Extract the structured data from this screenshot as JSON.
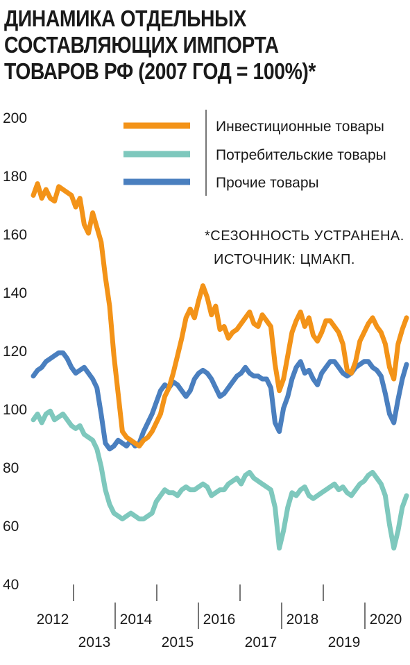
{
  "title_lines": [
    "ДИНАМИКА ОТДЕЛЬНЫХ",
    "СОСТАВЛЯЮЩИХ ИМПОРТА",
    "ТОВАРОВ РФ (2007 ГОД = 100%)*"
  ],
  "note_lines": [
    "*СЕЗОННОСТЬ УСТРАНЕНА.",
    "ИСТОЧНИК: ЦМАКП."
  ],
  "chart_data": {
    "type": "line",
    "title": "ДИНАМИКА ОТДЕЛЬНЫХ СОСТАВЛЯЮЩИХ ИМПОРТА ТОВАРОВ РФ (2007 ГОД = 100%)*",
    "xlabel": "",
    "ylabel": "",
    "ylim": [
      40,
      200
    ],
    "xlim": [
      2011.5,
      2020.3
    ],
    "y_ticks": [
      "200",
      "180",
      "160",
      "140",
      "120",
      "100",
      "80",
      "60",
      "40"
    ],
    "x_ticks_top": [
      "2012",
      "2014",
      "2016",
      "2018",
      "2020"
    ],
    "x_ticks_bottom": [
      "2013",
      "2015",
      "2017",
      "2019"
    ],
    "grid": false,
    "legend_position": "top-right",
    "series": [
      {
        "name": "Инвестиционные товары",
        "color": "#f39318",
        "x": [
          2011.5,
          2011.6,
          2011.7,
          2011.8,
          2011.9,
          2012.0,
          2012.1,
          2012.2,
          2012.3,
          2012.4,
          2012.5,
          2012.6,
          2012.7,
          2012.8,
          2012.9,
          2013.0,
          2013.1,
          2013.2,
          2013.3,
          2013.4,
          2013.5,
          2013.6,
          2013.7,
          2013.8,
          2013.9,
          2014.0,
          2014.1,
          2014.2,
          2014.3,
          2014.4,
          2014.5,
          2014.6,
          2014.7,
          2014.8,
          2014.9,
          2015.0,
          2015.1,
          2015.2,
          2015.3,
          2015.4,
          2015.5,
          2015.6,
          2015.7,
          2015.8,
          2015.9,
          2016.0,
          2016.1,
          2016.2,
          2016.3,
          2016.4,
          2016.5,
          2016.6,
          2016.7,
          2016.8,
          2016.9,
          2017.0,
          2017.1,
          2017.2,
          2017.3,
          2017.4,
          2017.5,
          2017.6,
          2017.7,
          2017.8,
          2017.9,
          2018.0,
          2018.1,
          2018.2,
          2018.3,
          2018.4,
          2018.5,
          2018.6,
          2018.7,
          2018.8,
          2018.9,
          2019.0,
          2019.1,
          2019.2,
          2019.3,
          2019.4,
          2019.5,
          2019.6,
          2019.7,
          2019.8,
          2019.9,
          2020.0,
          2020.1,
          2020.2,
          2020.3
        ],
        "values": [
          173,
          177,
          172,
          175,
          172,
          171,
          176,
          175,
          174,
          173,
          169,
          172,
          163,
          160,
          167,
          162,
          157,
          145,
          135,
          118,
          105,
          92,
          90,
          89,
          88,
          87,
          89,
          90,
          92,
          95,
          98,
          104,
          107,
          112,
          118,
          124,
          131,
          134,
          131,
          137,
          142,
          138,
          132,
          135,
          127,
          128,
          124,
          126,
          127,
          129,
          131,
          133,
          129,
          128,
          132,
          130,
          128,
          115,
          106,
          110,
          118,
          126,
          130,
          133,
          128,
          131,
          125,
          123,
          126,
          130,
          130,
          128,
          126,
          122,
          113,
          112,
          116,
          123,
          126,
          129,
          131,
          128,
          126,
          122,
          114,
          110,
          122,
          127,
          131
        ]
      },
      {
        "name": "Потребительские товары",
        "color": "#7ec8bd",
        "x": [
          2011.5,
          2011.6,
          2011.7,
          2011.8,
          2011.9,
          2012.0,
          2012.1,
          2012.2,
          2012.3,
          2012.4,
          2012.5,
          2012.6,
          2012.7,
          2012.8,
          2012.9,
          2013.0,
          2013.1,
          2013.2,
          2013.3,
          2013.4,
          2013.5,
          2013.6,
          2013.7,
          2013.8,
          2013.9,
          2014.0,
          2014.1,
          2014.2,
          2014.3,
          2014.4,
          2014.5,
          2014.6,
          2014.7,
          2014.8,
          2014.9,
          2015.0,
          2015.1,
          2015.2,
          2015.3,
          2015.4,
          2015.5,
          2015.6,
          2015.7,
          2015.8,
          2015.9,
          2016.0,
          2016.1,
          2016.2,
          2016.3,
          2016.4,
          2016.5,
          2016.6,
          2016.7,
          2016.8,
          2016.9,
          2017.0,
          2017.1,
          2017.2,
          2017.3,
          2017.4,
          2017.5,
          2017.6,
          2017.7,
          2017.8,
          2017.9,
          2018.0,
          2018.1,
          2018.2,
          2018.3,
          2018.4,
          2018.5,
          2018.6,
          2018.7,
          2018.8,
          2018.9,
          2019.0,
          2019.1,
          2019.2,
          2019.3,
          2019.4,
          2019.5,
          2019.6,
          2019.7,
          2019.8,
          2019.9,
          2020.0,
          2020.1,
          2020.2,
          2020.3
        ],
        "values": [
          96,
          98,
          95,
          98,
          99,
          96,
          97,
          98,
          96,
          94,
          93,
          94,
          91,
          90,
          89,
          86,
          80,
          72,
          67,
          64,
          63,
          62,
          63,
          64,
          63,
          62,
          62,
          63,
          64,
          68,
          70,
          72,
          71,
          71,
          70,
          72,
          73,
          72,
          72,
          73,
          74,
          73,
          70,
          71,
          72,
          72,
          74,
          75,
          76,
          74,
          77,
          78,
          76,
          75,
          74,
          73,
          72,
          66,
          52,
          58,
          66,
          71,
          70,
          72,
          73,
          70,
          69,
          70,
          71,
          72,
          73,
          74,
          72,
          73,
          71,
          70,
          72,
          74,
          75,
          77,
          78,
          76,
          74,
          70,
          60,
          52,
          58,
          66,
          70
        ]
      },
      {
        "name": "Прочие товары",
        "color": "#4a7fbf",
        "x": [
          2011.5,
          2011.6,
          2011.7,
          2011.8,
          2011.9,
          2012.0,
          2012.1,
          2012.2,
          2012.3,
          2012.4,
          2012.5,
          2012.6,
          2012.7,
          2012.8,
          2012.9,
          2013.0,
          2013.1,
          2013.2,
          2013.3,
          2013.4,
          2013.5,
          2013.6,
          2013.7,
          2013.8,
          2013.9,
          2014.0,
          2014.1,
          2014.2,
          2014.3,
          2014.4,
          2014.5,
          2014.6,
          2014.7,
          2014.8,
          2014.9,
          2015.0,
          2015.1,
          2015.2,
          2015.3,
          2015.4,
          2015.5,
          2015.6,
          2015.7,
          2015.8,
          2015.9,
          2016.0,
          2016.1,
          2016.2,
          2016.3,
          2016.4,
          2016.5,
          2016.6,
          2016.7,
          2016.8,
          2016.9,
          2017.0,
          2017.1,
          2017.2,
          2017.3,
          2017.4,
          2017.5,
          2017.6,
          2017.7,
          2017.8,
          2017.9,
          2018.0,
          2018.1,
          2018.2,
          2018.3,
          2018.4,
          2018.5,
          2018.6,
          2018.7,
          2018.8,
          2018.9,
          2019.0,
          2019.1,
          2019.2,
          2019.3,
          2019.4,
          2019.5,
          2019.6,
          2019.7,
          2019.8,
          2019.9,
          2020.0,
          2020.1,
          2020.2,
          2020.3
        ],
        "values": [
          111,
          113,
          114,
          116,
          117,
          118,
          119,
          119,
          117,
          114,
          112,
          113,
          114,
          112,
          110,
          107,
          98,
          88,
          86,
          87,
          89,
          88,
          87,
          89,
          87,
          88,
          92,
          95,
          98,
          102,
          106,
          108,
          107,
          109,
          108,
          106,
          104,
          106,
          110,
          112,
          113,
          112,
          110,
          107,
          104,
          105,
          107,
          109,
          111,
          112,
          114,
          112,
          111,
          111,
          110,
          110,
          107,
          95,
          92,
          100,
          104,
          110,
          114,
          116,
          112,
          113,
          110,
          108,
          112,
          114,
          116,
          116,
          114,
          112,
          111,
          112,
          114,
          115,
          116,
          116,
          114,
          113,
          111,
          105,
          98,
          95,
          103,
          110,
          115
        ]
      }
    ]
  },
  "colors": {
    "orange": "#f39318",
    "teal": "#7ec8bd",
    "blue": "#4a7fbf",
    "axis": "#1a1a1a"
  }
}
